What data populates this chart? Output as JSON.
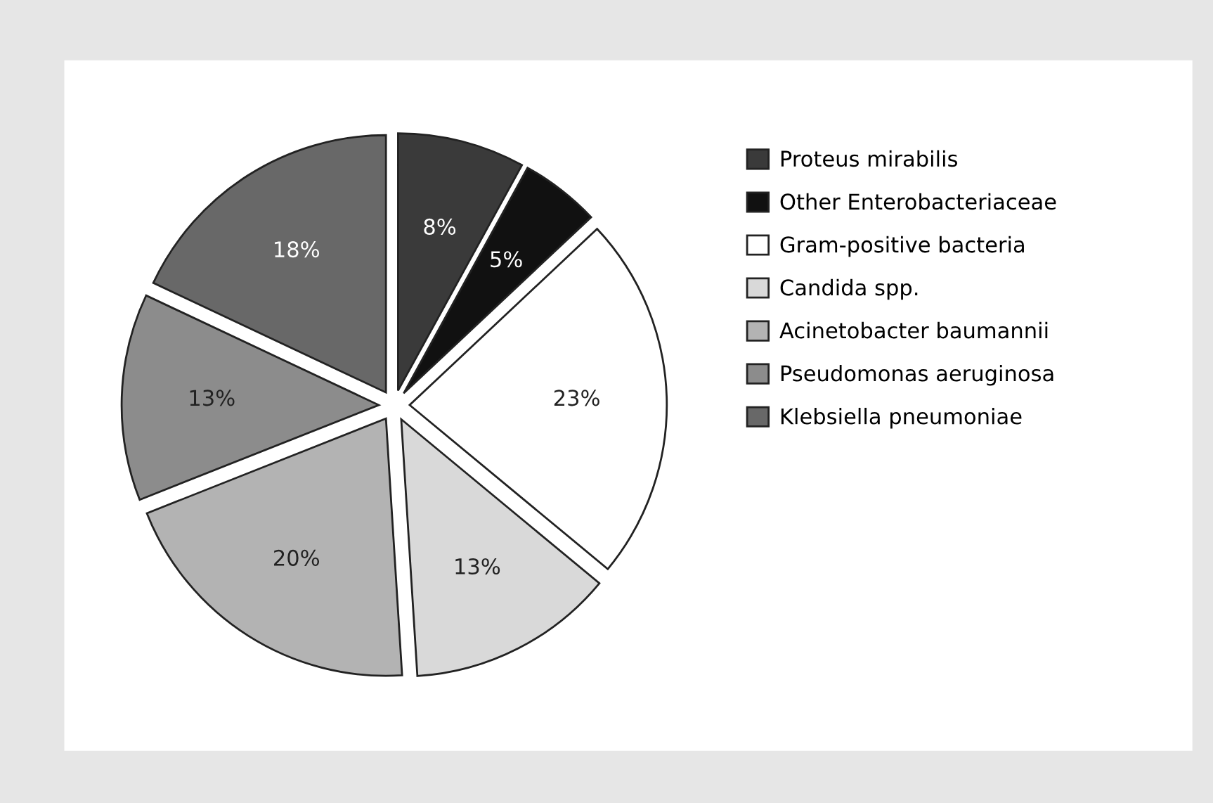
{
  "chart_data": {
    "type": "pie",
    "categories": [
      "Proteus mirabilis",
      "Other Enterobacteriaceae",
      "Gram-positive bacteria",
      "Candida spp.",
      "Acinetobacter baumannii",
      "Pseudomonas aeruginosa",
      "Klebsiella pneumoniae"
    ],
    "values": [
      8,
      5,
      23,
      13,
      20,
      13,
      18
    ],
    "colors": [
      "#3a3a3a",
      "#111111",
      "#ffffff",
      "#d9d9d9",
      "#b3b3b3",
      "#8c8c8c",
      "#686868"
    ],
    "value_labels": [
      "8%",
      "5%",
      "23%",
      "13%",
      "20%",
      "13%",
      "18%"
    ],
    "legend": "right"
  }
}
